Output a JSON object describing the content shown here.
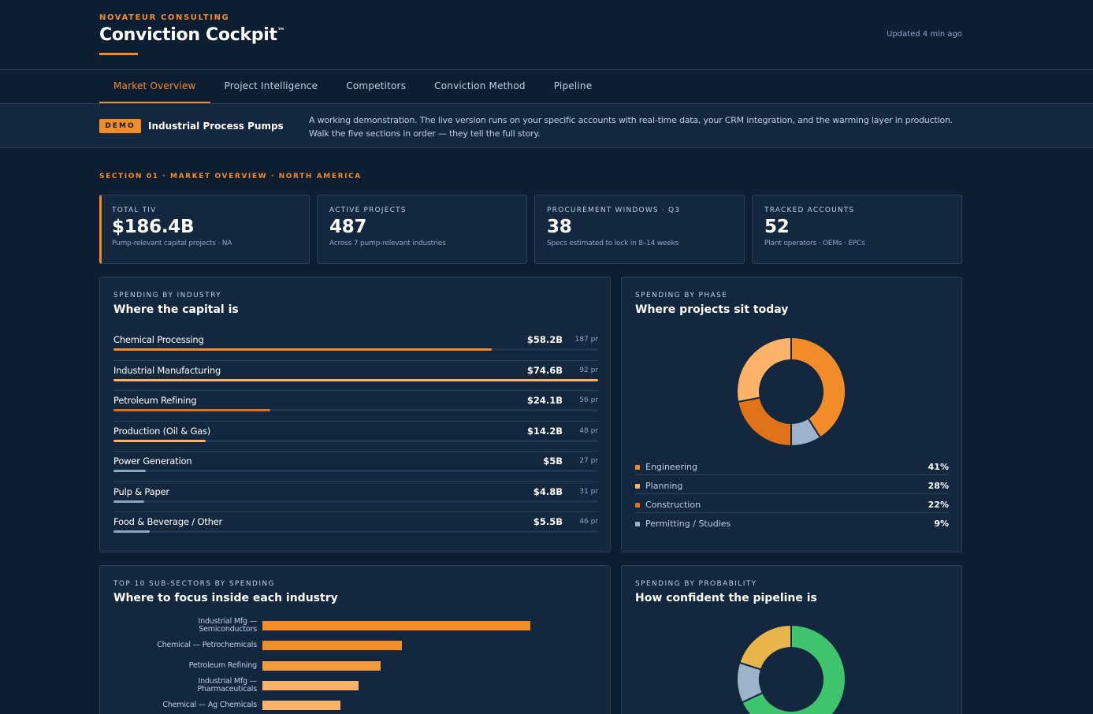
{
  "header": {
    "brand": "NOVATEUR CONSULTING",
    "title": "Conviction Cockpit",
    "trademark": "™",
    "updated": "Updated 4 min ago"
  },
  "tabs": [
    {
      "label": "Market Overview",
      "active": true
    },
    {
      "label": "Project Intelligence",
      "active": false
    },
    {
      "label": "Competitors",
      "active": false
    },
    {
      "label": "Conviction Method",
      "active": false
    },
    {
      "label": "Pipeline",
      "active": false
    }
  ],
  "demo": {
    "badge": "DEMO",
    "name": "Industrial Process Pumps",
    "description": "A working demonstration. The live version runs on your specific accounts with real-time data, your CRM integration, and the warming layer in production. Walk the five sections in order — they tell the full story."
  },
  "section_label": "SECTION 01 · MARKET OVERVIEW · NORTH AMERICA",
  "kpis": [
    {
      "label": "TOTAL TIV",
      "value": "$186.4B",
      "sub": "Pump-relevant capital projects · NA"
    },
    {
      "label": "ACTIVE PROJECTS",
      "value": "487",
      "sub": "Across 7 pump-relevant industries"
    },
    {
      "label": "PROCUREMENT WINDOWS · Q3",
      "value": "38",
      "sub": "Specs estimated to lock in 8–14 weeks"
    },
    {
      "label": "TRACKED ACCOUNTS",
      "value": "52",
      "sub": "Plant operators · OEMs · EPCs"
    }
  ],
  "industry_panel": {
    "eyebrow": "SPENDING BY INDUSTRY",
    "title": "Where the capital is",
    "rows": [
      {
        "name": "Chemical Processing",
        "value": "$58.2B",
        "projects": "187 pr",
        "fill": 0.78,
        "color": "#f28c28"
      },
      {
        "name": "Industrial Manufacturing",
        "value": "$74.6B",
        "projects": "92 pr",
        "fill": 1.0,
        "color": "#fdb26a"
      },
      {
        "name": "Petroleum Refining",
        "value": "$24.1B",
        "projects": "56 pr",
        "fill": 0.323,
        "color": "#e0731a"
      },
      {
        "name": "Production (Oil & Gas)",
        "value": "$14.2B",
        "projects": "48 pr",
        "fill": 0.19,
        "color": "#fdb26a"
      },
      {
        "name": "Power Generation",
        "value": "$5B",
        "projects": "27 pr",
        "fill": 0.067,
        "color": "#8ea6c4"
      },
      {
        "name": "Pulp & Paper",
        "value": "$4.8B",
        "projects": "31 pr",
        "fill": 0.064,
        "color": "#8ea6c4"
      },
      {
        "name": "Food & Beverage / Other",
        "value": "$5.5B",
        "projects": "46 pr",
        "fill": 0.074,
        "color": "#8ea6c4"
      }
    ]
  },
  "phase_panel": {
    "eyebrow": "SPENDING BY PHASE",
    "title": "Where projects sit today",
    "items": [
      {
        "name": "Engineering",
        "value": "41%",
        "color": "#f28c28"
      },
      {
        "name": "Planning",
        "value": "28%",
        "color": "#fdb26a"
      },
      {
        "name": "Construction",
        "value": "22%",
        "color": "#e0731a"
      },
      {
        "name": "Permitting / Studies",
        "value": "9%",
        "color": "#9fb2cc"
      }
    ]
  },
  "subsector_panel": {
    "eyebrow": "TOP 10 SUB-SECTORS BY SPENDING",
    "title": "Where to focus inside each industry"
  },
  "probability_panel": {
    "eyebrow": "SPENDING BY PROBABILITY",
    "title": "How confident the pipeline is"
  },
  "chart_data": [
    {
      "type": "pie",
      "categories": [
        "Engineering",
        "Planning",
        "Construction",
        "Permitting / Studies"
      ],
      "values": [
        41,
        28,
        22,
        9
      ],
      "colors": [
        "#f28c28",
        "#fdb26a",
        "#e0731a",
        "#9fb2cc"
      ],
      "order_clockwise_from_top": [
        "Engineering",
        "Permitting / Studies",
        "Construction",
        "Planning"
      ]
    },
    {
      "type": "bar",
      "orientation": "horizontal",
      "categories": [
        "Industrial Mfg — Semiconductors",
        "Chemical — Petrochemicals",
        "Petroleum Refining",
        "Industrial Mfg — Pharmaceuticals",
        "Chemical — Ag Chemicals"
      ],
      "values": [
        100,
        52,
        44,
        36,
        29
      ],
      "colors": [
        "#f28c28",
        "#f28c28",
        "#f59a3c",
        "#fdb26a",
        "#fdb26a"
      ]
    },
    {
      "type": "pie",
      "values": [
        68,
        12,
        20
      ],
      "colors": [
        "#3ec46d",
        "#9fb2cc",
        "#e8b54a"
      ]
    }
  ]
}
